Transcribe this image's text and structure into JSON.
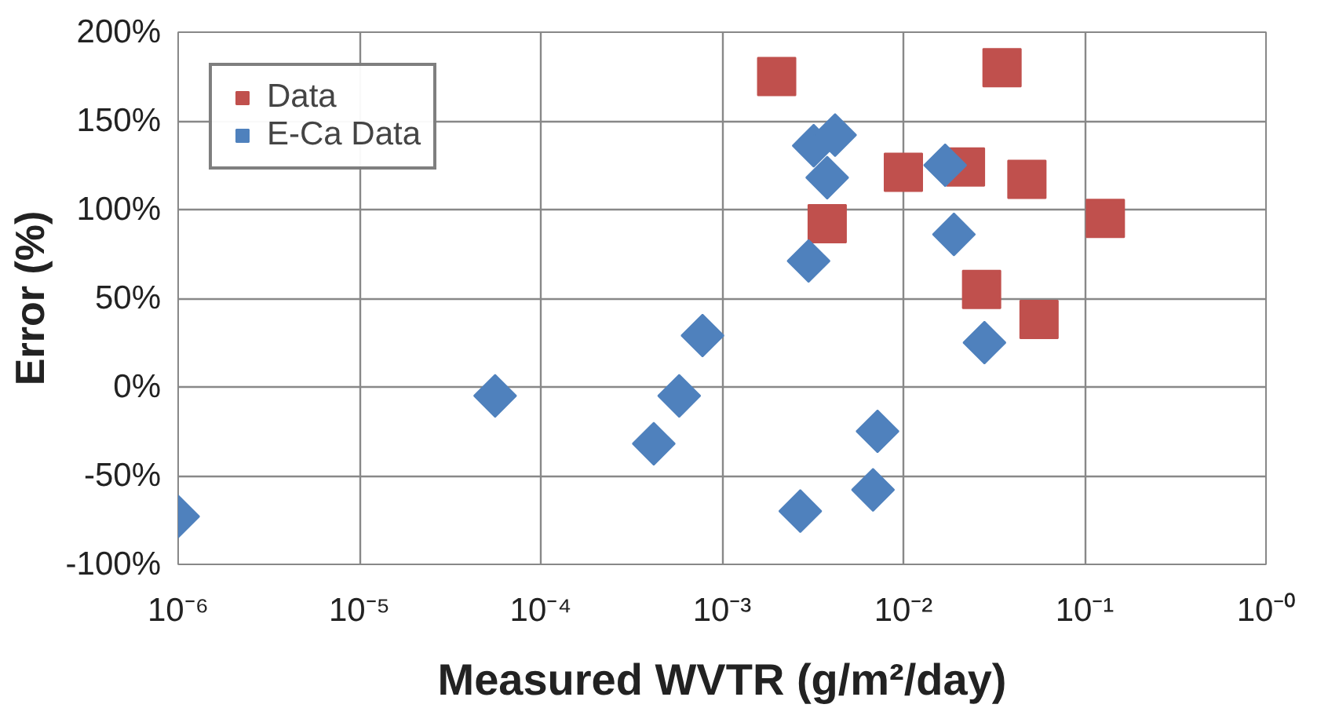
{
  "chart_data": {
    "type": "scatter",
    "xlabel": "Measured WVTR (g/m²/day)",
    "ylabel": "Error (%)",
    "log": "x",
    "grid": true,
    "legend": "top left",
    "xlim": [
      1e-06,
      1
    ],
    "ylim": [
      -100,
      200
    ],
    "xticks": [
      {
        "value": 1e-06,
        "label": "10⁻⁶"
      },
      {
        "value": 1e-05,
        "label": "10⁻⁵"
      },
      {
        "value": 0.0001,
        "label": "10⁻⁴"
      },
      {
        "value": 0.001,
        "label": "10⁻³"
      },
      {
        "value": 0.01,
        "label": "10⁻²"
      },
      {
        "value": 0.1,
        "label": "10⁻¹"
      },
      {
        "value": 1,
        "label": "10⁻⁰"
      }
    ],
    "yticks": [
      {
        "value": -100,
        "label": "-100%"
      },
      {
        "value": -50,
        "label": "-50%"
      },
      {
        "value": 0,
        "label": "0%"
      },
      {
        "value": 50,
        "label": "50%"
      },
      {
        "value": 100,
        "label": "100%"
      },
      {
        "value": 150,
        "label": "150%"
      },
      {
        "value": 200,
        "label": "200%"
      }
    ],
    "series": [
      {
        "name": "Data",
        "color": "#c0504d",
        "marker": "square",
        "x": [
          0.002,
          0.035,
          0.01,
          0.022,
          0.048,
          0.13,
          0.0038,
          0.027,
          0.056
        ],
        "values": [
          175,
          180,
          121,
          124,
          117,
          95,
          92,
          55,
          38
        ]
      },
      {
        "name": "E-Ca Data",
        "color": "#4f81bd",
        "marker": "diamond",
        "x": [
          1e-06,
          5.6e-05,
          0.00058,
          0.00042,
          0.00078,
          0.0032,
          0.0042,
          0.0038,
          0.003,
          0.017,
          0.019,
          0.028,
          0.0072,
          0.0068,
          0.0027
        ],
        "values": [
          -73,
          -5,
          -5,
          -32,
          29,
          136,
          142,
          118,
          71,
          125,
          86,
          25,
          -25,
          -58,
          -70
        ]
      }
    ]
  }
}
